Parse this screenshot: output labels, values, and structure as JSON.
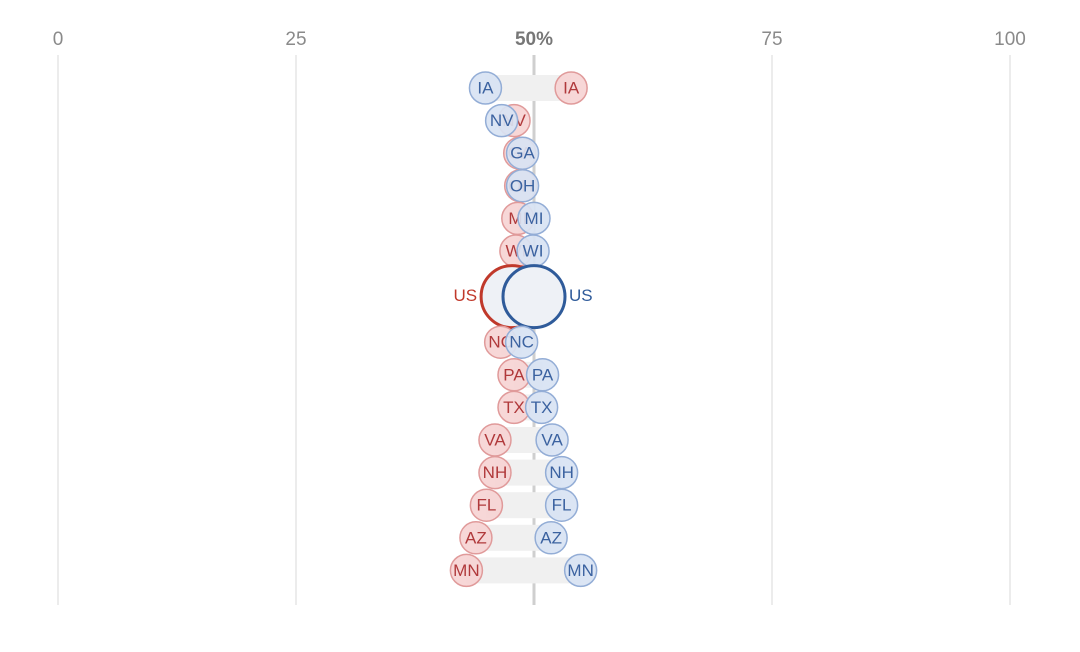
{
  "chart_data": {
    "type": "dot",
    "categories": [
      "IA",
      "NV",
      "GA",
      "OH",
      "MI",
      "WI",
      "US",
      "NC",
      "PA",
      "TX",
      "VA",
      "NH",
      "FL",
      "AZ",
      "MN"
    ],
    "highlight_category": "US",
    "series": [
      {
        "color": "#c0392b",
        "values": [
          53.9,
          47.9,
          48.5,
          48.6,
          48.3,
          48.1,
          47.7,
          46.5,
          47.9,
          47.9,
          45.9,
          45.9,
          45.0,
          43.9,
          42.9
        ]
      },
      {
        "color": "#2f5b9a",
        "values": [
          44.9,
          46.6,
          48.8,
          48.8,
          50.0,
          49.9,
          50.0,
          48.7,
          50.9,
          50.8,
          51.9,
          52.9,
          52.9,
          51.8,
          54.9
        ]
      }
    ],
    "xlim": [
      0,
      100
    ],
    "xticks": [
      0,
      25,
      {
        "value": 50,
        "label": "50%"
      },
      75,
      100
    ],
    "grid": true
  }
}
